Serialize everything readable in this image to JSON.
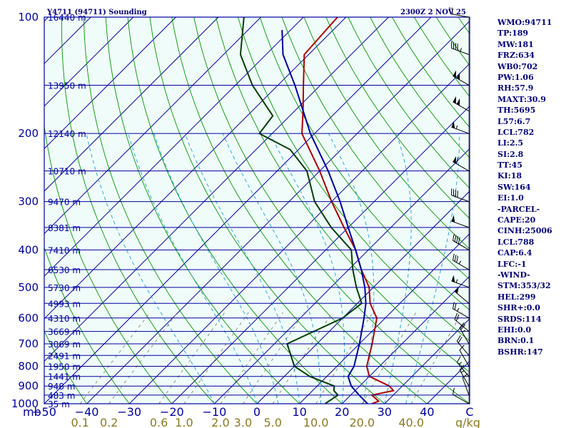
{
  "header": {
    "station": "Y4711 (94711) Sounding",
    "time": "2300Z  2 NOV 25"
  },
  "chart_data": {
    "type": "skew-t",
    "pressure_axis": {
      "ticks": [
        100,
        200,
        300,
        400,
        500,
        600,
        700,
        800,
        900,
        1000
      ],
      "unit": "mb",
      "range": [
        1000,
        100
      ]
    },
    "temperature_axis": {
      "ticks": [
        -50,
        -40,
        -30,
        -20,
        -10,
        0,
        10,
        20,
        30,
        40
      ],
      "unit": "C",
      "range": [
        -50,
        50
      ]
    },
    "mixing_ratio_axis": {
      "labels": [
        "0.1",
        "0.2",
        "0.6",
        "1.0",
        "2.0",
        "3.0",
        "5.0",
        "10.0",
        "20.0",
        "40.0"
      ],
      "unit": "g/kg"
    },
    "heights": [
      {
        "p": 100,
        "label": "16440 m"
      },
      {
        "p": 150,
        "label": "13950 m"
      },
      {
        "p": 200,
        "label": "12140 m"
      },
      {
        "p": 250,
        "label": "10710 m"
      },
      {
        "p": 300,
        "label": "9470 m"
      },
      {
        "p": 350,
        "label": "8381 m"
      },
      {
        "p": 400,
        "label": "7410 m"
      },
      {
        "p": 450,
        "label": "6530 m"
      },
      {
        "p": 500,
        "label": "5730 m"
      },
      {
        "p": 550,
        "label": "4993 m"
      },
      {
        "p": 600,
        "label": "4310 m"
      },
      {
        "p": 650,
        "label": "3669 m"
      },
      {
        "p": 700,
        "label": "3069 m"
      },
      {
        "p": 750,
        "label": "2491 m"
      },
      {
        "p": 800,
        "label": "1950 m"
      },
      {
        "p": 850,
        "label": "1441 m"
      },
      {
        "p": 900,
        "label": "948 m"
      },
      {
        "p": 950,
        "label": "483 m"
      },
      {
        "p": 1000,
        "label": "35 m"
      }
    ],
    "series": [
      {
        "name": "temperature",
        "color": "#b00000",
        "points": [
          [
            1000,
            27
          ],
          [
            985,
            28
          ],
          [
            950,
            25
          ],
          [
            925,
            29
          ],
          [
            900,
            27
          ],
          [
            850,
            20
          ],
          [
            800,
            17
          ],
          [
            700,
            13
          ],
          [
            600,
            8
          ],
          [
            550,
            3
          ],
          [
            500,
            -1
          ],
          [
            450,
            -7
          ],
          [
            400,
            -13
          ],
          [
            350,
            -21
          ],
          [
            300,
            -30
          ],
          [
            250,
            -40
          ],
          [
            200,
            -53
          ],
          [
            175,
            -58
          ],
          [
            150,
            -64
          ],
          [
            125,
            -71
          ],
          [
            100,
            -72
          ]
        ]
      },
      {
        "name": "dewpoint",
        "color": "#004000",
        "points": [
          [
            1000,
            16
          ],
          [
            950,
            17
          ],
          [
            925,
            15
          ],
          [
            900,
            14
          ],
          [
            850,
            6
          ],
          [
            800,
            0
          ],
          [
            700,
            -7
          ],
          [
            600,
            0
          ],
          [
            550,
            1
          ],
          [
            500,
            -4
          ],
          [
            450,
            -9
          ],
          [
            400,
            -14
          ],
          [
            350,
            -24
          ],
          [
            300,
            -34
          ],
          [
            250,
            -43
          ],
          [
            220,
            -52
          ],
          [
            200,
            -63
          ],
          [
            180,
            -64
          ],
          [
            150,
            -76
          ],
          [
            125,
            -86
          ],
          [
            100,
            -94
          ]
        ]
      },
      {
        "name": "parcel",
        "color": "#0000a0",
        "points": [
          [
            1000,
            26
          ],
          [
            950,
            22
          ],
          [
            900,
            18
          ],
          [
            850,
            15
          ],
          [
            800,
            14
          ],
          [
            700,
            10
          ],
          [
            600,
            5
          ],
          [
            550,
            2
          ],
          [
            500,
            -2
          ],
          [
            450,
            -7
          ],
          [
            400,
            -13
          ],
          [
            350,
            -20
          ],
          [
            300,
            -28
          ],
          [
            250,
            -38
          ],
          [
            200,
            -51
          ],
          [
            150,
            -66
          ],
          [
            125,
            -76
          ],
          [
            108,
            -82
          ]
        ]
      }
    ],
    "wind_barbs": [
      {
        "p": 1000,
        "dir": 300,
        "spd": 10
      },
      {
        "p": 950,
        "dir": 340,
        "spd": 10
      },
      {
        "p": 900,
        "dir": 330,
        "spd": 15
      },
      {
        "p": 850,
        "dir": 320,
        "spd": 15
      },
      {
        "p": 800,
        "dir": 330,
        "spd": 10
      },
      {
        "p": 750,
        "dir": 320,
        "spd": 20
      },
      {
        "p": 700,
        "dir": 330,
        "spd": 25
      },
      {
        "p": 650,
        "dir": 310,
        "spd": 20
      },
      {
        "p": 600,
        "dir": 300,
        "spd": 25
      },
      {
        "p": 550,
        "dir": 310,
        "spd": 50
      },
      {
        "p": 500,
        "dir": 290,
        "spd": 55
      },
      {
        "p": 450,
        "dir": 300,
        "spd": 35
      },
      {
        "p": 400,
        "dir": 300,
        "spd": 40
      },
      {
        "p": 350,
        "dir": 290,
        "spd": 50
      },
      {
        "p": 300,
        "dir": 290,
        "spd": 40
      },
      {
        "p": 250,
        "dir": 300,
        "spd": 60
      },
      {
        "p": 200,
        "dir": 290,
        "spd": 55
      },
      {
        "p": 175,
        "dir": 300,
        "spd": 100
      },
      {
        "p": 150,
        "dir": 300,
        "spd": 100
      },
      {
        "p": 125,
        "dir": 290,
        "spd": 45
      },
      {
        "p": 100,
        "dir": 280,
        "spd": 20
      }
    ]
  },
  "indices": [
    "WMO:94711",
    "TP:189",
    "MW:181",
    "FRZ:634",
    "WB0:702",
    "PW:1.06",
    "RH:57.9",
    "MAXT:30.9",
    "TH:5695",
    "L57:6.7",
    "LCL:782",
    "LI:2.5",
    "SI:2.8",
    "TT:45",
    "KI:18",
    "SW:164",
    "EI:1.0",
    "-PARCEL-",
    "CAPE:20",
    "CINH:25006",
    "LCL:788",
    "CAP:6.4",
    "LFC:-1",
    "-WIND-",
    "STM:353/32",
    "HEL:299",
    "SHR+:0.0",
    "SRDS:114",
    "EHI:0.0",
    "BRN:0.1",
    "BSHR:147"
  ],
  "colors": {
    "background": "#f0fcfa",
    "axis": "#0000a0",
    "isobar": "#0000a0",
    "skew": "#0000a0",
    "dry_adiabat": "#009600",
    "moist_adiabat": "#30a8d8",
    "mixing": "#7a7a50"
  }
}
